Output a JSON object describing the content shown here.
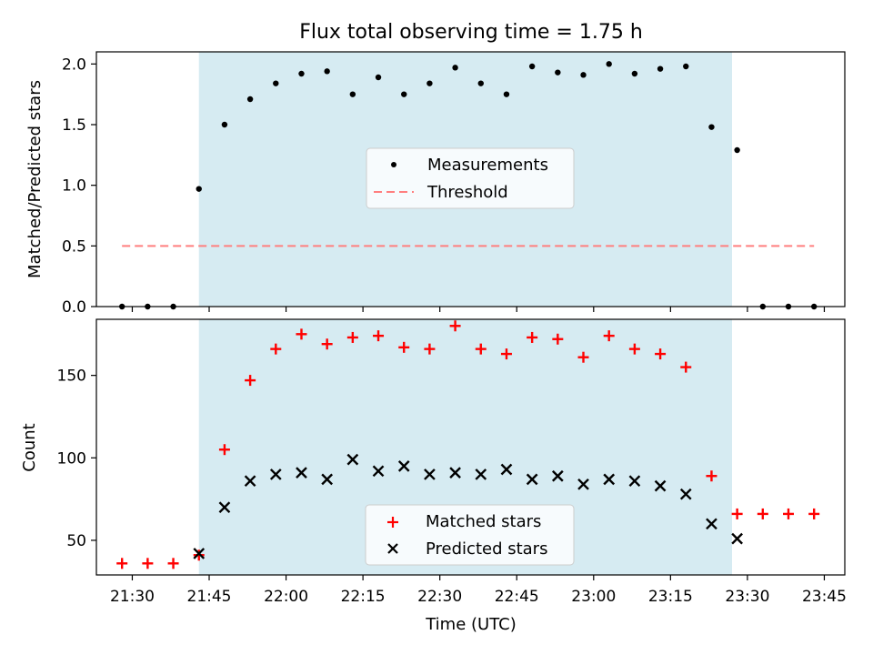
{
  "chart_data": [
    {
      "type": "scatter",
      "title": "Flux total observing time = 1.75 h",
      "xlabel": "",
      "ylabel": "Matched/Predicted stars",
      "xlim": [
        "21:23",
        "23:49"
      ],
      "ylim": [
        0,
        2.1
      ],
      "yticks": [
        "0.0",
        "0.5",
        "1.0",
        "1.5",
        "2.0"
      ],
      "shaded_interval": [
        "21:43",
        "23:27"
      ],
      "shade_color": "#add8e6",
      "legend_position": "center",
      "series": [
        {
          "name": "Measurements",
          "marker": "dot",
          "color": "#000000",
          "x": [
            "21:28",
            "21:33",
            "21:38",
            "21:43",
            "21:48",
            "21:53",
            "21:58",
            "22:03",
            "22:08",
            "22:13",
            "22:18",
            "22:23",
            "22:28",
            "22:33",
            "22:38",
            "22:43",
            "22:48",
            "22:53",
            "22:58",
            "23:03",
            "23:08",
            "23:13",
            "23:18",
            "23:23",
            "23:28",
            "23:33",
            "23:38",
            "23:43"
          ],
          "values": [
            0,
            0,
            0,
            0.97,
            1.5,
            1.71,
            1.84,
            1.92,
            1.94,
            1.75,
            1.89,
            1.75,
            1.84,
            1.97,
            1.84,
            1.75,
            1.98,
            1.93,
            1.91,
            2.0,
            1.92,
            1.96,
            1.98,
            1.48,
            1.29,
            0,
            0,
            0
          ]
        },
        {
          "name": "Threshold",
          "marker": "dashed-line",
          "color": "#ff7f7f",
          "x": [
            "21:28",
            "23:43"
          ],
          "values": [
            0.5,
            0.5
          ]
        }
      ]
    },
    {
      "type": "scatter",
      "title": "",
      "xlabel": "Time (UTC)",
      "ylabel": "Count",
      "xlim": [
        "21:23",
        "23:49"
      ],
      "ylim": [
        29,
        184
      ],
      "yticks": [
        "50",
        "100",
        "150"
      ],
      "xticks": [
        "21:30",
        "21:45",
        "22:00",
        "22:15",
        "22:30",
        "22:45",
        "23:00",
        "23:15",
        "23:30",
        "23:45"
      ],
      "shaded_interval": [
        "21:43",
        "23:27"
      ],
      "shade_color": "#add8e6",
      "legend_position": "lower center",
      "series": [
        {
          "name": "Matched stars",
          "marker": "plus",
          "color": "#ff0000",
          "x": [
            "21:28",
            "21:33",
            "21:38",
            "21:43",
            "21:48",
            "21:53",
            "21:58",
            "22:03",
            "22:08",
            "22:13",
            "22:18",
            "22:23",
            "22:28",
            "22:33",
            "22:38",
            "22:43",
            "22:48",
            "22:53",
            "22:58",
            "23:03",
            "23:08",
            "23:13",
            "23:18",
            "23:23",
            "23:28",
            "23:33",
            "23:38",
            "23:43"
          ],
          "values": [
            36,
            36,
            36,
            41,
            105,
            147,
            166,
            175,
            169,
            173,
            174,
            167,
            166,
            180,
            166,
            163,
            173,
            172,
            161,
            174,
            166,
            163,
            155,
            89,
            66,
            66,
            66,
            66
          ]
        },
        {
          "name": "Predicted stars",
          "marker": "x",
          "color": "#000000",
          "x": [
            "21:43",
            "21:48",
            "21:53",
            "21:58",
            "22:03",
            "22:08",
            "22:13",
            "22:18",
            "22:23",
            "22:28",
            "22:33",
            "22:38",
            "22:43",
            "22:48",
            "22:53",
            "22:58",
            "23:03",
            "23:08",
            "23:13",
            "23:18",
            "23:23",
            "23:28"
          ],
          "values": [
            42,
            70,
            86,
            90,
            91,
            87,
            99,
            92,
            95,
            90,
            91,
            90,
            93,
            87,
            89,
            84,
            87,
            86,
            83,
            78,
            60,
            51
          ]
        }
      ]
    }
  ]
}
